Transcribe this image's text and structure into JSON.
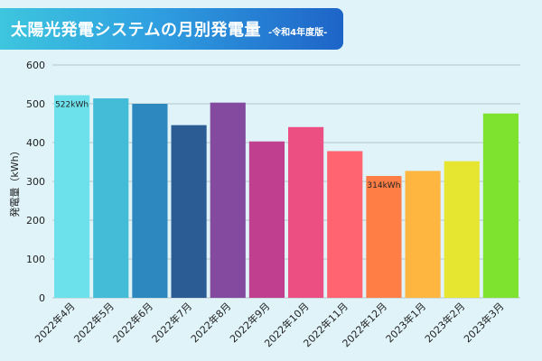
{
  "header": {
    "title": "太陽光発電システムの月別発電量",
    "subtitle": "-令和4年度版-"
  },
  "chart_data": {
    "type": "bar",
    "title": "太陽光発電システムの月別発電量",
    "subtitle": "-令和4年度版-",
    "xlabel": "",
    "ylabel": "発電量（kWh）",
    "ylim": [
      0,
      600
    ],
    "yticks": [
      0,
      100,
      200,
      300,
      400,
      500,
      600
    ],
    "grid": true,
    "categories": [
      "2022年4月",
      "2022年5月",
      "2022年6月",
      "2022年7月",
      "2022年8月",
      "2022年9月",
      "2022年10月",
      "2022年11月",
      "2022年12月",
      "2023年1月",
      "2023年2月",
      "2023年3月"
    ],
    "values": [
      522,
      514,
      500,
      445,
      503,
      403,
      440,
      378,
      314,
      327,
      352,
      475
    ],
    "colors": [
      "#6ce1ec",
      "#44bcd8",
      "#2e88c0",
      "#2b5c94",
      "#834a9f",
      "#c0408f",
      "#ec4f82",
      "#ff6470",
      "#ff7e45",
      "#ffb640",
      "#e6e530",
      "#7ee32e"
    ],
    "data_labels": [
      {
        "index": 0,
        "text": "522kWh"
      },
      {
        "index": 8,
        "text": "314kWh"
      }
    ]
  }
}
